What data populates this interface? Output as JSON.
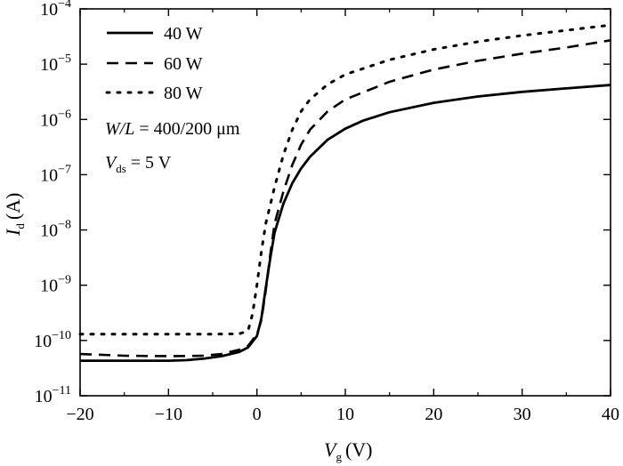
{
  "chart_data": {
    "type": "line",
    "x_axis": {
      "label_var": "V",
      "label_sub": "g",
      "label_unit": "(V)",
      "ticks": [
        -20,
        -10,
        0,
        10,
        20,
        30,
        40
      ],
      "tick_labels": [
        "−20",
        "−10",
        "0",
        "10",
        "20",
        "30",
        "40"
      ],
      "range": [
        -20,
        40
      ]
    },
    "y_axis": {
      "label_var": "I",
      "label_sub": "d",
      "label_unit": "(A)",
      "scale": "log",
      "range": [
        1e-11,
        0.0001
      ],
      "tick_base": "10",
      "tick_exponents": [
        "−11",
        "−10",
        "−9",
        "−8",
        "−7",
        "−6",
        "−5",
        "−4"
      ]
    },
    "series": [
      {
        "name": "40 W",
        "style": "solid",
        "points": [
          [
            -20,
            4.3e-11
          ],
          [
            -15,
            4.3e-11
          ],
          [
            -10,
            4.3e-11
          ],
          [
            -8,
            4.4e-11
          ],
          [
            -6,
            4.7e-11
          ],
          [
            -4,
            5.2e-11
          ],
          [
            -2,
            6.2e-11
          ],
          [
            -1,
            7.5e-11
          ],
          [
            0,
            1.2e-10
          ],
          [
            0.5,
            2.5e-10
          ],
          [
            1,
            9e-10
          ],
          [
            1.5,
            3e-09
          ],
          [
            2,
            9e-09
          ],
          [
            3,
            3e-08
          ],
          [
            4,
            7e-08
          ],
          [
            5,
            1.3e-07
          ],
          [
            6,
            2.1e-07
          ],
          [
            8,
            4.3e-07
          ],
          [
            10,
            6.8e-07
          ],
          [
            12,
            9.5e-07
          ],
          [
            15,
            1.35e-06
          ],
          [
            20,
            2e-06
          ],
          [
            25,
            2.6e-06
          ],
          [
            30,
            3.15e-06
          ],
          [
            35,
            3.65e-06
          ],
          [
            40,
            4.2e-06
          ]
        ]
      },
      {
        "name": "60 W",
        "style": "dashed",
        "points": [
          [
            -20,
            5.7e-11
          ],
          [
            -15,
            5.3e-11
          ],
          [
            -10,
            5.2e-11
          ],
          [
            -6,
            5.3e-11
          ],
          [
            -4,
            5.7e-11
          ],
          [
            -2,
            6.8e-11
          ],
          [
            -1,
            8e-11
          ],
          [
            0,
            1.3e-10
          ],
          [
            0.5,
            2.3e-10
          ],
          [
            1,
            8e-10
          ],
          [
            1.5,
            3.5e-09
          ],
          [
            2,
            1.3e-08
          ],
          [
            3,
            5e-08
          ],
          [
            4,
            1.5e-07
          ],
          [
            5,
            3.5e-07
          ],
          [
            6,
            6.5e-07
          ],
          [
            8,
            1.4e-06
          ],
          [
            10,
            2.3e-06
          ],
          [
            15,
            4.8e-06
          ],
          [
            20,
            8e-06
          ],
          [
            25,
            1.15e-05
          ],
          [
            30,
            1.55e-05
          ],
          [
            35,
            2e-05
          ],
          [
            40,
            2.7e-05
          ]
        ]
      },
      {
        "name": "80 W",
        "style": "dotted",
        "points": [
          [
            -20,
            1.3e-10
          ],
          [
            -10,
            1.3e-10
          ],
          [
            -5,
            1.3e-10
          ],
          [
            -2,
            1.32e-10
          ],
          [
            -1,
            1.5e-10
          ],
          [
            -0.5,
            3e-10
          ],
          [
            0,
            1e-09
          ],
          [
            0.5,
            4e-09
          ],
          [
            1,
            1.3e-08
          ],
          [
            2,
            6e-08
          ],
          [
            3,
            2.3e-07
          ],
          [
            4,
            6.5e-07
          ],
          [
            5,
            1.4e-06
          ],
          [
            6,
            2.3e-06
          ],
          [
            8,
            4.3e-06
          ],
          [
            10,
            6.5e-06
          ],
          [
            15,
            1.2e-05
          ],
          [
            20,
            1.85e-05
          ],
          [
            25,
            2.55e-05
          ],
          [
            30,
            3.3e-05
          ],
          [
            35,
            4.1e-05
          ],
          [
            40,
            5.1e-05
          ]
        ]
      }
    ],
    "legend_position": "top-left",
    "annotations": {
      "wl_var": "W/L",
      "wl_value": " = 400/200 μm",
      "vds_var": "V",
      "vds_sub": "ds",
      "vds_value": " = 5 V"
    },
    "grid": false
  }
}
